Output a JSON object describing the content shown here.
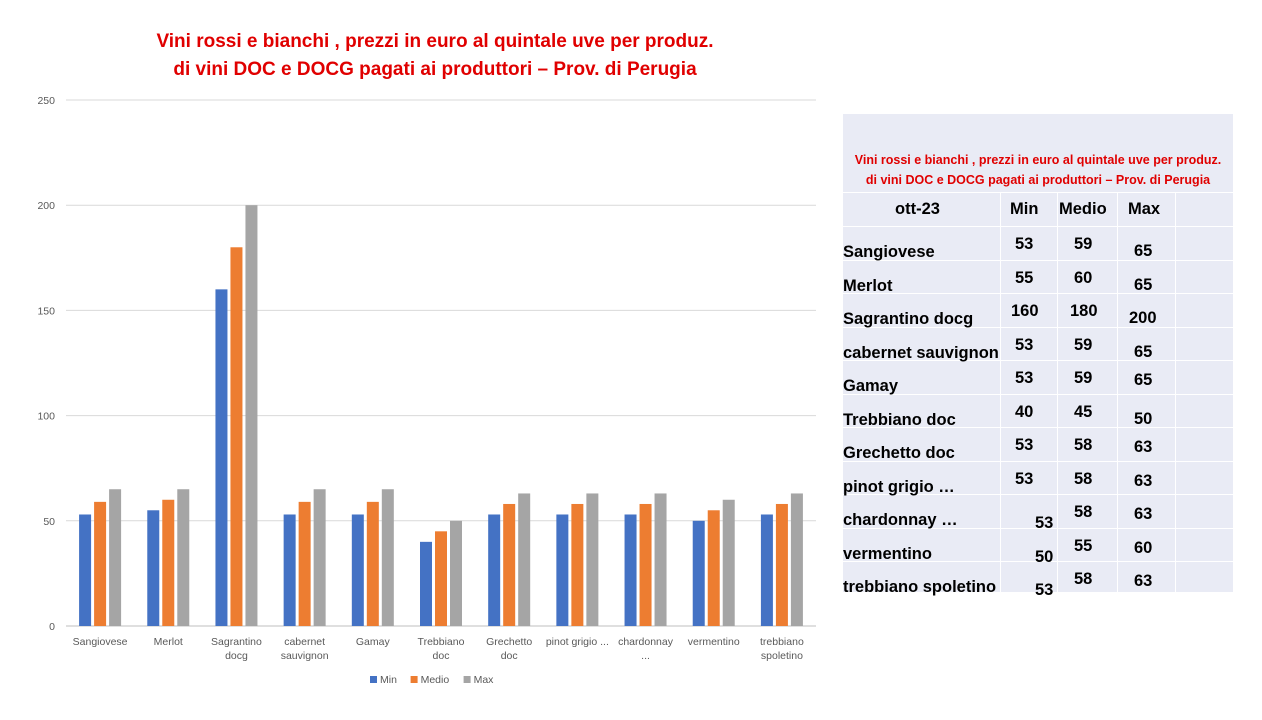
{
  "chart_data": {
    "type": "bar",
    "title": "Vini rossi e bianchi , prezzi in euro al quintale uve per produz. di vini DOC e DOCG pagati ai produttori – Prov. di Perugia",
    "title_lines": [
      "Vini rossi e bianchi , prezzi in euro al quintale uve per produz.",
      "di vini DOC e DOCG pagati ai produttori – Prov. di Perugia"
    ],
    "categories": [
      "Sangiovese",
      "Merlot",
      "Sagrantino docg",
      "cabernet sauvignon",
      "Gamay",
      "Trebbiano doc",
      "Grechetto doc",
      "pinot grigio ...",
      "chardonnay ...",
      "vermentino",
      "trebbiano spoletino"
    ],
    "category_labels": [
      [
        "Sangiovese"
      ],
      [
        "Merlot"
      ],
      [
        "Sagrantino",
        "docg"
      ],
      [
        "cabernet",
        "sauvignon"
      ],
      [
        "Gamay"
      ],
      [
        "Trebbiano",
        "doc"
      ],
      [
        "Grechetto",
        "doc"
      ],
      [
        "pinot grigio ..."
      ],
      [
        "chardonnay",
        "..."
      ],
      [
        "vermentino"
      ],
      [
        "trebbiano",
        "spoletino"
      ]
    ],
    "series": [
      {
        "name": "Min",
        "color": "#4472c4",
        "values": [
          53,
          55,
          160,
          53,
          53,
          40,
          53,
          53,
          53,
          50,
          53
        ]
      },
      {
        "name": "Medio",
        "color": "#ed7d31",
        "values": [
          59,
          60,
          180,
          59,
          59,
          45,
          58,
          58,
          58,
          55,
          58
        ]
      },
      {
        "name": "Max",
        "color": "#a5a5a5",
        "values": [
          65,
          65,
          200,
          65,
          65,
          50,
          63,
          63,
          63,
          60,
          63
        ]
      }
    ],
    "ylim": [
      0,
      250
    ],
    "yticks": [
      0,
      50,
      100,
      150,
      200,
      250
    ],
    "xlabel": "",
    "ylabel": "",
    "grid": true,
    "legend_position": "bottom"
  },
  "table": {
    "title_lines": [
      "Vini rossi e bianchi , prezzi in euro al  quintale uve per produz.",
      "di vini DOC  e DOCG pagati ai produttori – Prov. di Perugia"
    ],
    "headers": [
      "ott-23",
      "Min",
      "Medio",
      "Max"
    ],
    "rows": [
      [
        "Sangiovese",
        "53",
        "59",
        "65"
      ],
      [
        "Merlot",
        "55",
        "60",
        "65"
      ],
      [
        "Sagrantino docg",
        "160",
        "180",
        "200"
      ],
      [
        "cabernet sauvignon",
        "53",
        "59",
        "65"
      ],
      [
        "Gamay",
        "53",
        "59",
        "65"
      ],
      [
        "Trebbiano doc",
        "40",
        "45",
        "50"
      ],
      [
        "Grechetto doc",
        "53",
        "58",
        "63"
      ],
      [
        "pinot grigio …",
        "53",
        "58",
        "63"
      ],
      [
        "chardonnay …",
        "53",
        "58",
        "63"
      ],
      [
        "vermentino",
        "50",
        "55",
        "60"
      ],
      [
        "trebbiano spoletino",
        "53",
        "58",
        "63"
      ]
    ]
  }
}
